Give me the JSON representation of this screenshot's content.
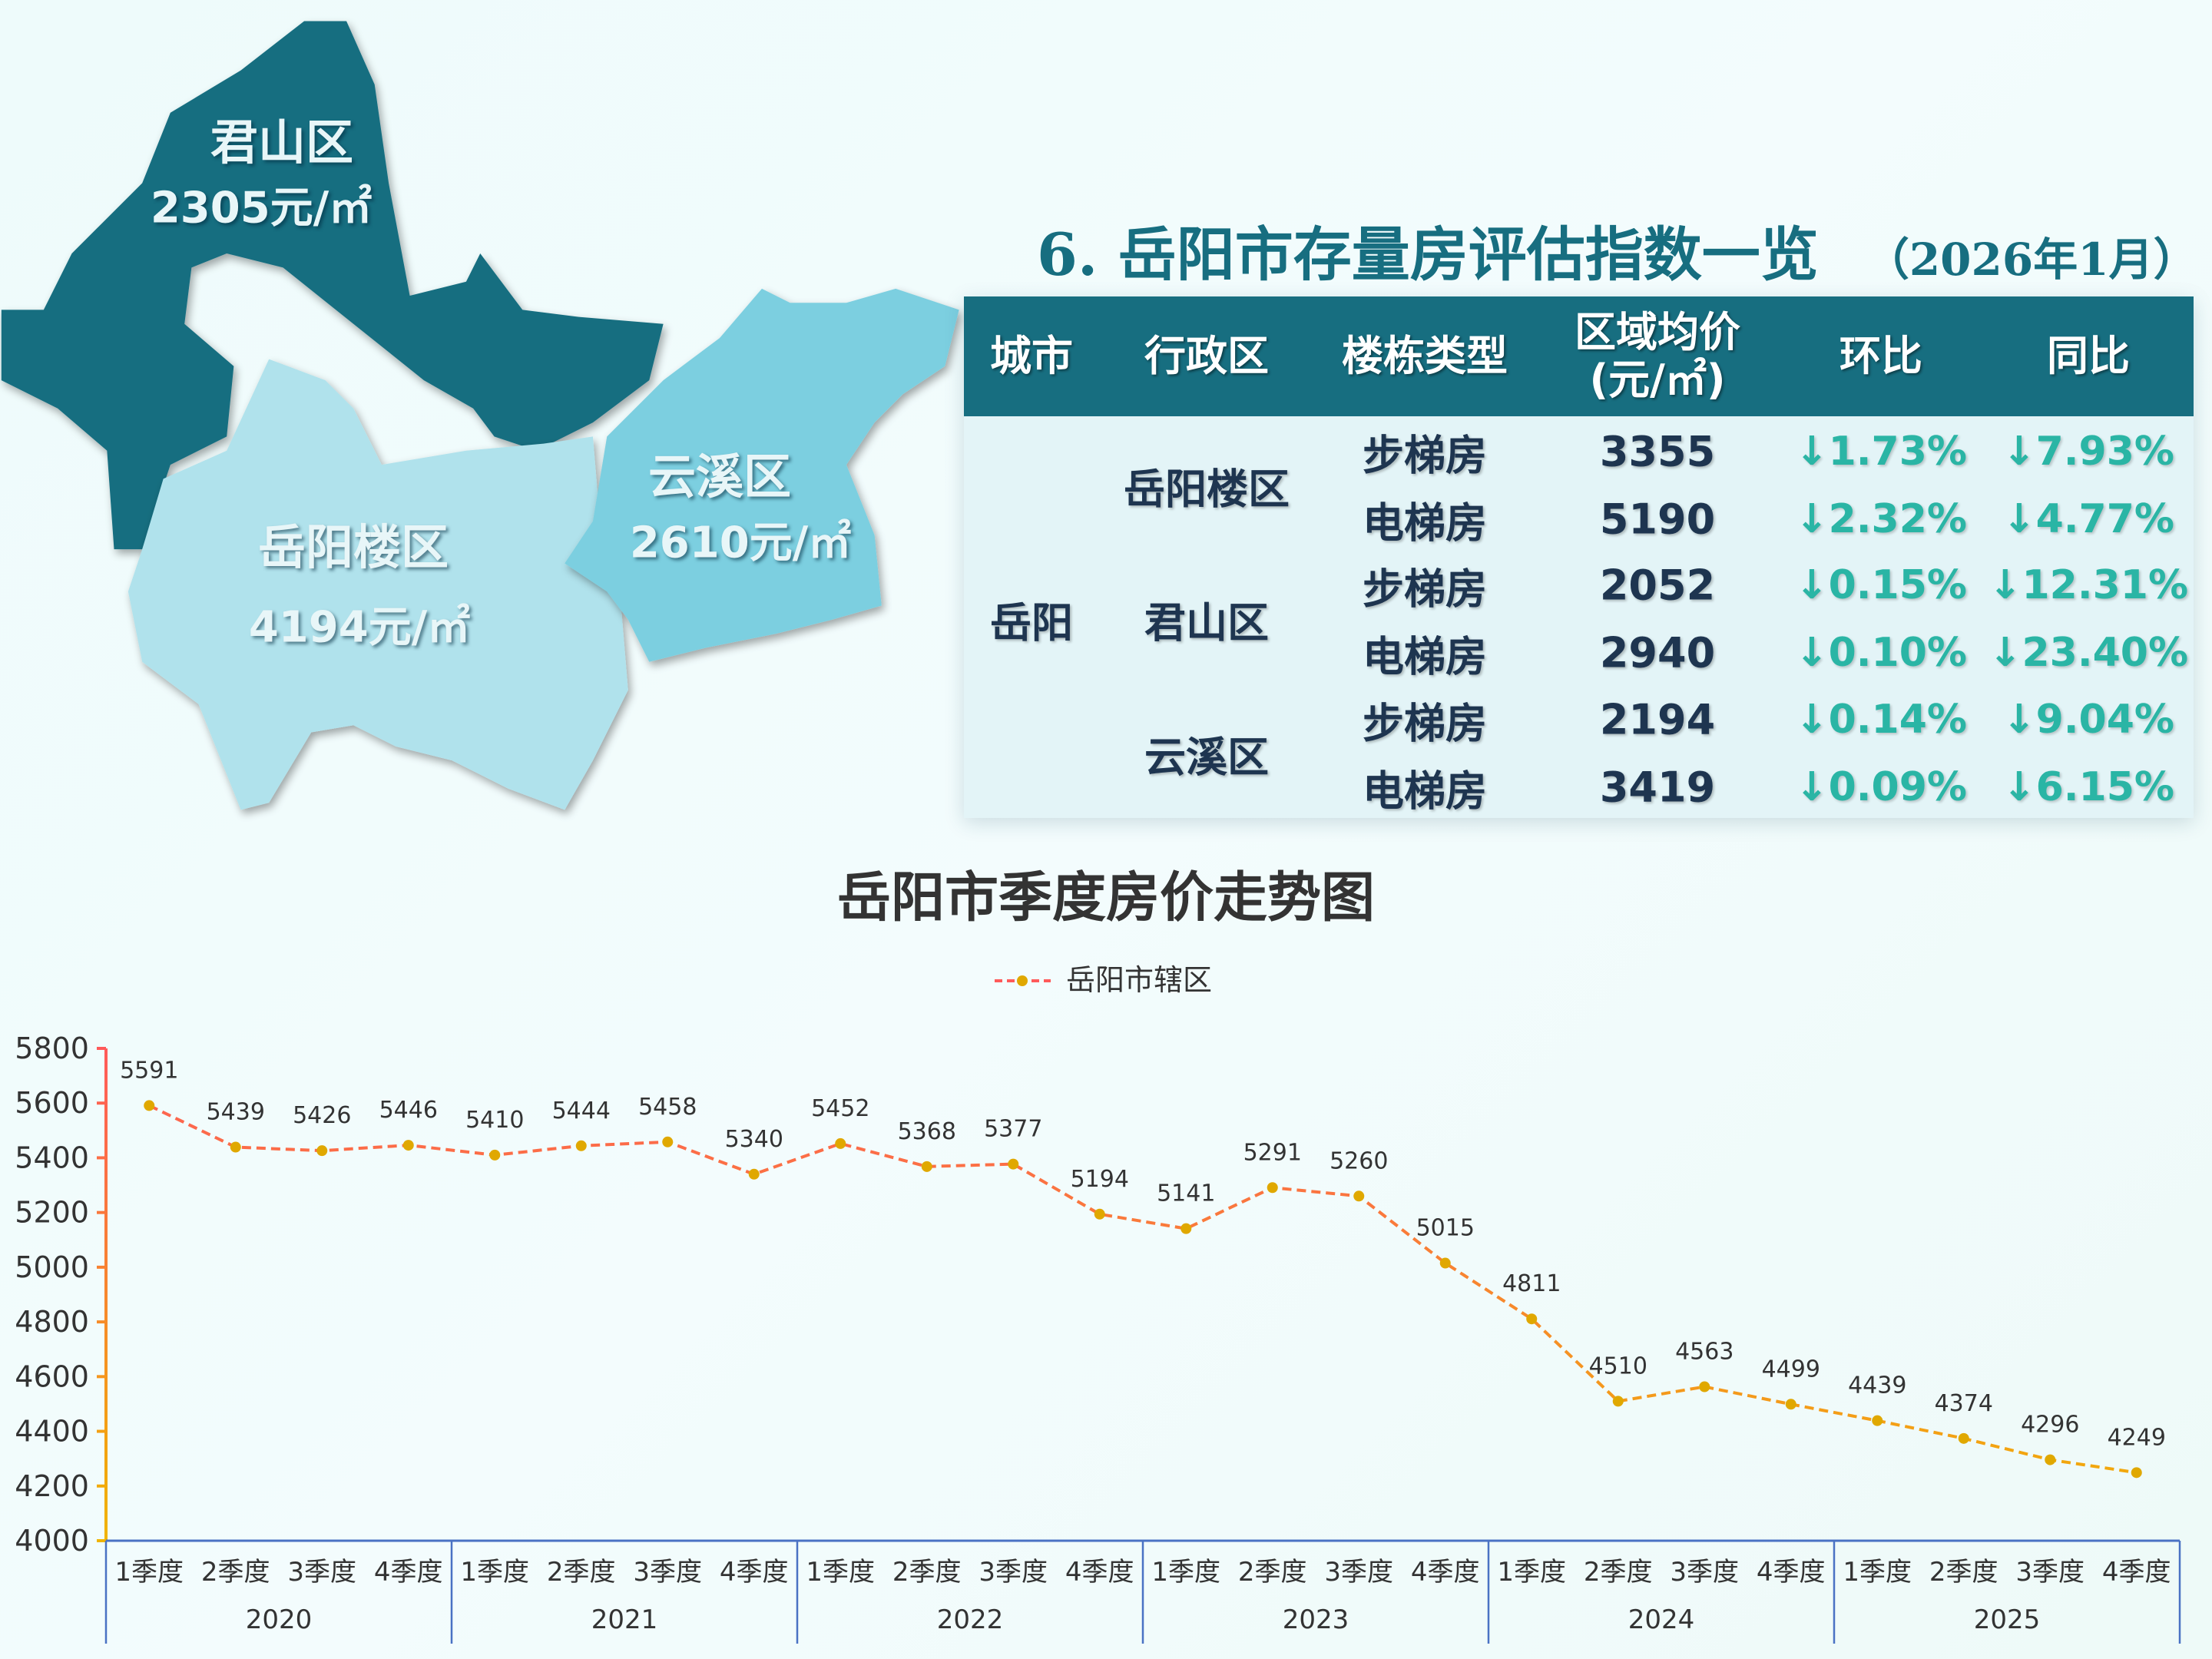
{
  "map": {
    "colors": {
      "junshan": "#176e80",
      "yueyanglou": "#b0e2ec",
      "yunxi": "#7ccfe0"
    },
    "districts": [
      {
        "name": "君山区",
        "price": "2305元/㎡"
      },
      {
        "name": "岳阳楼区",
        "price": "4194元/㎡"
      },
      {
        "name": "云溪区",
        "price": "2610元/㎡"
      }
    ]
  },
  "table": {
    "title": "6. 岳阳市存量房评估指数一览",
    "subtitle": "（2026年1月）",
    "headers": [
      "城市",
      "行政区",
      "楼栋类型",
      "区域均价",
      "(元/㎡)",
      "环比",
      "同比"
    ],
    "city": "岳阳",
    "districts": [
      "岳阳楼区",
      "君山区",
      "云溪区"
    ],
    "rows": [
      {
        "type": "步梯房",
        "price": "3355",
        "mom": "↓1.73%",
        "yoy": "↓7.93%"
      },
      {
        "type": "电梯房",
        "price": "5190",
        "mom": "↓2.32%",
        "yoy": "↓4.77%"
      },
      {
        "type": "步梯房",
        "price": "2052",
        "mom": "↓0.15%",
        "yoy": "↓12.31%"
      },
      {
        "type": "电梯房",
        "price": "2940",
        "mom": "↓0.10%",
        "yoy": "↓23.40%"
      },
      {
        "type": "步梯房",
        "price": "2194",
        "mom": "↓0.14%",
        "yoy": "↓9.04%"
      },
      {
        "type": "电梯房",
        "price": "3419",
        "mom": "↓0.09%",
        "yoy": "↓6.15%"
      }
    ],
    "colors": {
      "header": "#176e80",
      "body": "#e3f4f7",
      "change": "#2ab5a5"
    }
  },
  "chart_data": {
    "type": "line",
    "title": "岳阳市季度房价走势图",
    "legend": "top-center",
    "series": [
      {
        "name": "岳阳市辖区",
        "line_style": "dashed",
        "color_gradient": [
          "#ff5a5a",
          "#f0b400"
        ],
        "marker_color": "#e0a800",
        "values": [
          5591,
          5439,
          5426,
          5446,
          5410,
          5444,
          5458,
          5340,
          5452,
          5368,
          5377,
          5194,
          5141,
          5291,
          5260,
          5015,
          4811,
          4510,
          4563,
          4499,
          4439,
          4374,
          4296,
          4249
        ]
      }
    ],
    "quarters": [
      "1季度",
      "2季度",
      "3季度",
      "4季度"
    ],
    "years": [
      "2020",
      "2021",
      "2022",
      "2023",
      "2024",
      "2025"
    ],
    "ylim": [
      4000,
      5800
    ],
    "yticks": [
      4000,
      4200,
      4400,
      4600,
      4800,
      5000,
      5200,
      5400,
      5600,
      5800
    ],
    "grid": false,
    "xlabel": "",
    "ylabel": ""
  }
}
